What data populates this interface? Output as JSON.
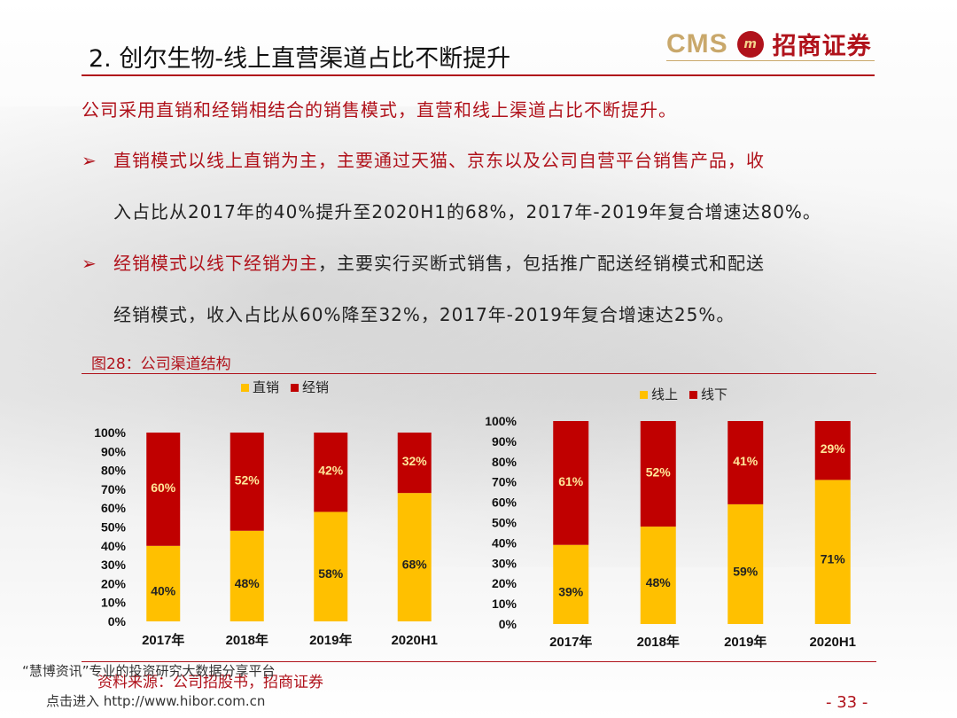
{
  "slide": {
    "title": "2. 创尔生物-线上直营渠道占比不断提升",
    "logo_cms": "CMS",
    "logo_cn": "招商证券",
    "intro": "公司采用直销和经销相结合的销售模式，直营和线上渠道占比不断提升。",
    "bullet_marker": "➢",
    "bullet1_line1": "直销模式以线上直销为主，主要通过天猫、京东以及公司自营平台销售产品，收",
    "bullet1_line2": "入占比从2017年的40%提升至2020H1的68%，2017年-2019年复合增速达80%。",
    "bullet2_lead": "经销模式以线下经销为主",
    "bullet2_rest": "，主要实行买断式销售，包括推广配送经销模式和配送",
    "bullet2_line2": "经销模式，收入占比从60%降至32%，2017年-2019年复合增速达25%。",
    "figure_title": "图28：公司渠道结构",
    "source": "资料来源：公司招股书，招商证券",
    "watermark_line1": "“慧博资讯”专业的投资研究大数据分享平台",
    "watermark_line2": "点击进入 http://www.hibor.com.cn",
    "page_number": "- 33 -"
  },
  "colors": {
    "accent_red": "#b0121b",
    "bar_yellow": "#ffc000",
    "bar_red": "#c00000",
    "logo_gold": "#c9a86b"
  },
  "chart_data": [
    {
      "type": "bar",
      "stacked": true,
      "categories": [
        "2017年",
        "2018年",
        "2019年",
        "2020H1"
      ],
      "series": [
        {
          "name": "直销",
          "values": [
            40,
            48,
            58,
            68
          ],
          "color": "#ffc000"
        },
        {
          "name": "经销",
          "values": [
            60,
            52,
            42,
            32
          ],
          "color": "#c00000"
        }
      ],
      "yticks": [
        "0%",
        "10%",
        "20%",
        "30%",
        "40%",
        "50%",
        "60%",
        "70%",
        "80%",
        "90%",
        "100%"
      ],
      "ylim": [
        0,
        100
      ],
      "legend": "top",
      "grid": false
    },
    {
      "type": "bar",
      "stacked": true,
      "categories": [
        "2017年",
        "2018年",
        "2019年",
        "2020H1"
      ],
      "series": [
        {
          "name": "线上",
          "values": [
            39,
            48,
            59,
            71
          ],
          "color": "#ffc000"
        },
        {
          "name": "线下",
          "values": [
            61,
            52,
            41,
            29
          ],
          "color": "#c00000"
        }
      ],
      "yticks": [
        "0%",
        "10%",
        "20%",
        "30%",
        "40%",
        "50%",
        "60%",
        "70%",
        "80%",
        "90%",
        "100%"
      ],
      "ylim": [
        0,
        100
      ],
      "legend": "top",
      "grid": false
    }
  ]
}
